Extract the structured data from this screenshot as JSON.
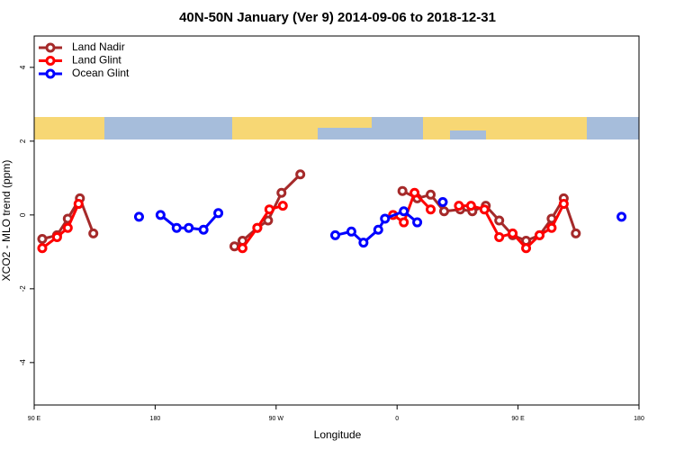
{
  "chart_data": {
    "type": "line",
    "title": "40N-50N January (Ver 9)   2014-09-06 to 2018-12-31",
    "x_label": "Longitude",
    "y_label": "XCO2 - MLO trend (ppm)",
    "xlim": [
      90,
      540
    ],
    "xticks": [
      {
        "value": 90,
        "label": "90 E"
      },
      {
        "value": 180,
        "label": "180"
      },
      {
        "value": 270,
        "label": "90 W"
      },
      {
        "value": 360,
        "label": "0"
      },
      {
        "value": 450,
        "label": "90 E"
      },
      {
        "value": 540,
        "label": "180"
      }
    ],
    "ylim": [
      -5.15,
      4.85
    ],
    "yticks": [
      -4,
      -2,
      0,
      2,
      4
    ],
    "legend": "top-left",
    "series": [
      {
        "name": "Land Nadir",
        "color": "#a52a2a",
        "x": [
          96,
          107,
          115,
          124,
          134,
          null,
          239,
          245,
          256,
          264,
          274,
          288,
          null,
          364,
          375,
          385,
          395,
          407,
          416,
          426,
          436,
          446,
          456,
          466,
          475,
          484,
          493
        ],
        "values": [
          -0.65,
          -0.55,
          -0.1,
          0.45,
          -0.5,
          null,
          -0.85,
          -0.7,
          -0.35,
          -0.15,
          0.6,
          1.1,
          null,
          0.65,
          0.45,
          0.55,
          0.1,
          0.15,
          0.1,
          0.25,
          -0.15,
          -0.55,
          -0.7,
          -0.55,
          -0.1,
          0.45,
          -0.5
        ]
      },
      {
        "name": "Land Glint",
        "color": "#ff0000",
        "x": [
          96,
          107,
          115,
          123,
          null,
          245,
          256,
          265,
          275,
          null,
          357,
          365,
          373,
          385,
          null,
          406,
          415,
          425,
          436,
          446,
          456,
          466,
          475,
          484
        ],
        "values": [
          -0.9,
          -0.6,
          -0.35,
          0.3,
          null,
          -0.9,
          -0.35,
          0.15,
          0.25,
          null,
          0.0,
          -0.2,
          0.6,
          0.15,
          null,
          0.25,
          0.25,
          0.15,
          -0.6,
          -0.5,
          -0.9,
          -0.55,
          -0.35,
          0.3
        ]
      },
      {
        "name": "Ocean Glint",
        "color": "#0000ff",
        "x": [
          168,
          null,
          184,
          196,
          205,
          216,
          227,
          null,
          314,
          326,
          335,
          346,
          351,
          365,
          375,
          null,
          394,
          null,
          527
        ],
        "values": [
          -0.05,
          null,
          0.0,
          -0.35,
          -0.35,
          -0.4,
          0.05,
          null,
          -0.55,
          -0.45,
          -0.75,
          -0.4,
          -0.1,
          0.1,
          -0.2,
          null,
          0.35,
          null,
          -0.05
        ]
      }
    ]
  }
}
